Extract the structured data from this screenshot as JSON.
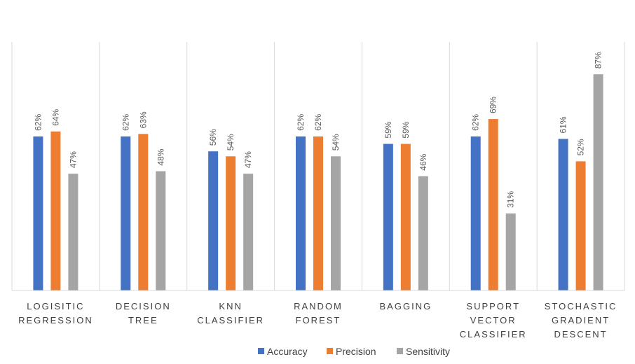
{
  "chart_data": {
    "type": "bar",
    "categories": [
      [
        "LOGISITIC",
        "REGRESSION"
      ],
      [
        "DECISION",
        "TREE"
      ],
      [
        "KNN",
        "CLASSIFIER"
      ],
      [
        "RANDOM",
        "FOREST"
      ],
      [
        "BAGGING"
      ],
      [
        "SUPPORT",
        "VECTOR",
        "CLASSIFIER"
      ],
      [
        "STOCHASTIC",
        "GRADIENT",
        "DESCENT"
      ]
    ],
    "series": [
      {
        "name": "Accuracy",
        "color": "#4472C4",
        "values": [
          62,
          62,
          56,
          62,
          59,
          62,
          61
        ]
      },
      {
        "name": "Precision",
        "color": "#ED7D31",
        "values": [
          64,
          63,
          54,
          62,
          59,
          69,
          52
        ]
      },
      {
        "name": "Sensitivity",
        "color": "#A5A5A5",
        "values": [
          47,
          48,
          47,
          54,
          46,
          31,
          87
        ]
      }
    ],
    "value_suffix": "%",
    "ylim": [
      0,
      100
    ],
    "grid": "vertical category separators",
    "legend": "bottom",
    "title": "",
    "xlabel": "",
    "ylabel": ""
  }
}
